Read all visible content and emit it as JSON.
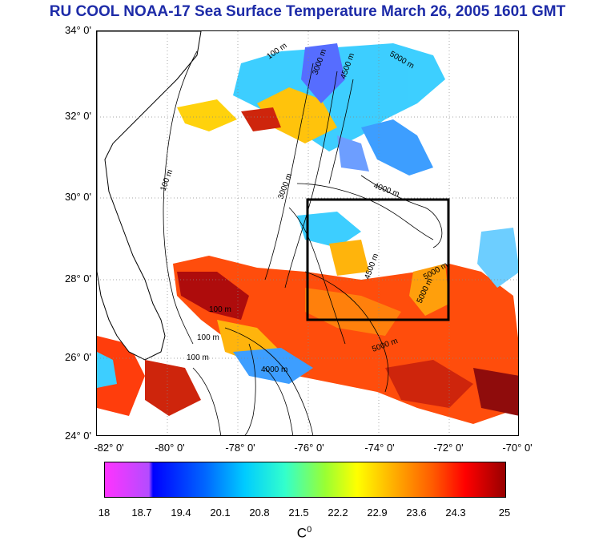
{
  "title": "RU COOL  NOAA-17 Sea Surface Temperature March 26, 2005 1601 GMT",
  "y_ticks": [
    "34° 0'",
    "32° 0'",
    "30° 0'",
    "28° 0'",
    "26° 0'",
    "24° 0'"
  ],
  "x_ticks": [
    "-82° 0'",
    "-80° 0'",
    "-78° 0'",
    "-76° 0'",
    "-74° 0'",
    "-72° 0'",
    "-70° 0'"
  ],
  "colorbar": {
    "ticks": [
      "18",
      "18.7",
      "19.4",
      "20.1",
      "20.8",
      "21.5",
      "22.2",
      "22.9",
      "23.6",
      "24.3",
      "25"
    ],
    "unit": "C",
    "unit_sup": "0"
  },
  "contour_labels": [
    "100 m",
    "3000 m",
    "4500 m",
    "5000 m",
    "4000 m",
    "100 m",
    "3000 m",
    "4500 m",
    "5000 m",
    "100 m",
    "100 m",
    "100 m",
    "4000 m",
    "5000 m",
    "5000 m"
  ],
  "colors": {
    "title": "#1d2ba8",
    "box": "#000000",
    "land": "#ffffff"
  }
}
